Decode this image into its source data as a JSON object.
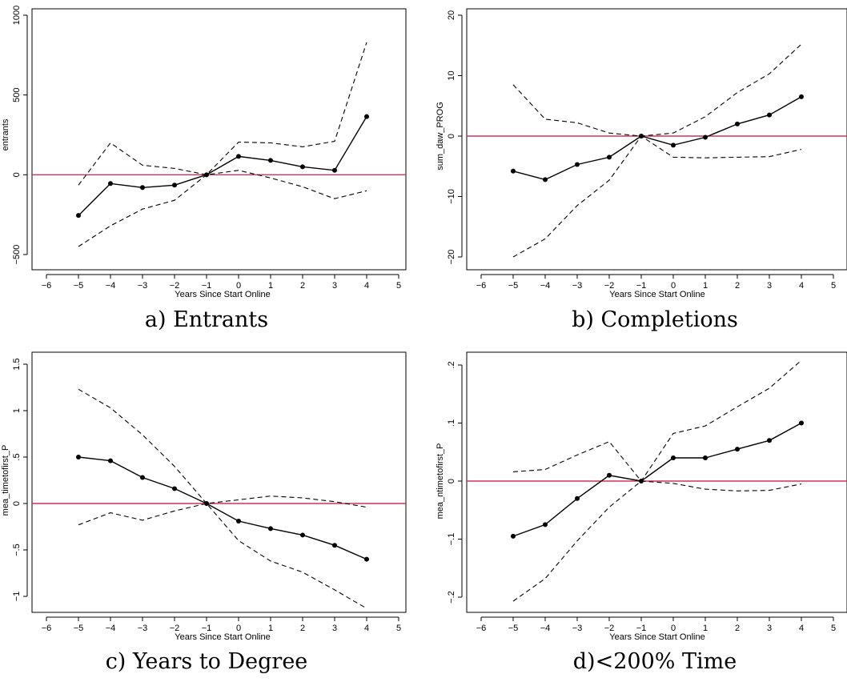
{
  "chart_data": [
    {
      "type": "line",
      "caption": "a) Entrants",
      "xlabel": "Years Since Start Online",
      "ylabel": "entrants",
      "xlim": [
        -6,
        5
      ],
      "ylim": [
        -500,
        1000
      ],
      "xticks": [
        -6,
        -5,
        -4,
        -3,
        -2,
        -1,
        0,
        1,
        2,
        3,
        4,
        5
      ],
      "xtick_labels": [
        "−6",
        "−5",
        "−4",
        "−3",
        "−2",
        "−1",
        "0",
        "1",
        "2",
        "3",
        "4",
        "5"
      ],
      "yticks": [
        -500,
        0,
        500,
        1000
      ],
      "ytick_labels": [
        "−500",
        "0",
        "500",
        "1000"
      ],
      "x": [
        -5,
        -4,
        -3,
        -2,
        -1,
        0,
        1,
        2,
        3,
        4
      ],
      "series": [
        {
          "role": "estimate",
          "values": [
            -255,
            -55,
            -80,
            -65,
            0,
            115,
            90,
            50,
            28,
            365
          ]
        },
        {
          "role": "upper",
          "values": [
            -65,
            200,
            60,
            40,
            0,
            205,
            200,
            175,
            210,
            830
          ]
        },
        {
          "role": "lower",
          "values": [
            -450,
            -320,
            -215,
            -160,
            0,
            28,
            -20,
            -75,
            -150,
            -100
          ]
        }
      ],
      "reference_line": {
        "y": 0,
        "color": "#c8375a"
      },
      "grid": false
    },
    {
      "type": "line",
      "caption": "b) Completions",
      "xlabel": "Years Since Start Online",
      "ylabel": "sum_daw_PROG",
      "xlim": [
        -6,
        5
      ],
      "ylim": [
        -20,
        20
      ],
      "xticks": [
        -6,
        -5,
        -4,
        -3,
        -2,
        -1,
        0,
        1,
        2,
        3,
        4,
        5
      ],
      "xtick_labels": [
        "−6",
        "−5",
        "−4",
        "−3",
        "−2",
        "−1",
        "0",
        "1",
        "2",
        "3",
        "4",
        "5"
      ],
      "yticks": [
        -20,
        -10,
        0,
        10,
        20
      ],
      "ytick_labels": [
        "−20",
        "−10",
        "0",
        "10",
        "20"
      ],
      "x": [
        -5,
        -4,
        -3,
        -2,
        -1,
        0,
        1,
        2,
        3,
        4
      ],
      "series": [
        {
          "role": "estimate",
          "values": [
            -5.8,
            -7.2,
            -4.7,
            -3.5,
            0,
            -1.5,
            -0.2,
            2.0,
            3.5,
            6.5
          ]
        },
        {
          "role": "upper",
          "values": [
            8.5,
            2.8,
            2.2,
            0.5,
            0,
            0.5,
            3.2,
            7.2,
            10.3,
            15.2
          ]
        },
        {
          "role": "lower",
          "values": [
            -20.0,
            -17.0,
            -11.5,
            -7.3,
            0,
            -3.5,
            -3.6,
            -3.5,
            -3.4,
            -2.2
          ]
        }
      ],
      "reference_line": {
        "y": 0,
        "color": "#c8375a"
      },
      "grid": false
    },
    {
      "type": "line",
      "caption": "c) Years to Degree",
      "xlabel": "Years Since Start Online",
      "ylabel": "mea_timetofirst_P",
      "xlim": [
        -6,
        5
      ],
      "ylim": [
        -1.2,
        1.5
      ],
      "xticks": [
        -6,
        -5,
        -4,
        -3,
        -2,
        -1,
        0,
        1,
        2,
        3,
        4,
        5
      ],
      "xtick_labels": [
        "−6",
        "−5",
        "−4",
        "−3",
        "−2",
        "−1",
        "0",
        "1",
        "2",
        "3",
        "4",
        "5"
      ],
      "yticks": [
        -1,
        -0.5,
        0,
        0.5,
        1,
        1.5
      ],
      "ytick_labels": [
        "−1",
        "−.5",
        "0",
        ".5",
        "1",
        "1.5"
      ],
      "x": [
        -5,
        -4,
        -3,
        -2,
        -1,
        0,
        1,
        2,
        3,
        4
      ],
      "series": [
        {
          "role": "estimate",
          "values": [
            0.5,
            0.46,
            0.28,
            0.16,
            0,
            -0.19,
            -0.27,
            -0.34,
            -0.45,
            -0.6
          ]
        },
        {
          "role": "upper",
          "values": [
            1.23,
            1.03,
            0.74,
            0.4,
            0,
            0.04,
            0.08,
            0.06,
            0.02,
            -0.04
          ]
        },
        {
          "role": "lower",
          "values": [
            -0.23,
            -0.1,
            -0.18,
            -0.08,
            0,
            -0.4,
            -0.62,
            -0.74,
            -0.93,
            -1.13
          ]
        }
      ],
      "reference_line": {
        "y": 0,
        "color": "#c8375a"
      },
      "grid": false
    },
    {
      "type": "line",
      "caption": "d)<200% Time",
      "xlabel": "Years Since Start Online",
      "ylabel": "mea_ntimetofirst_P",
      "xlim": [
        -6,
        5
      ],
      "ylim": [
        -0.21,
        0.21
      ],
      "xticks": [
        -6,
        -5,
        -4,
        -3,
        -2,
        -1,
        0,
        1,
        2,
        3,
        4,
        5
      ],
      "xtick_labels": [
        "−6",
        "−5",
        "−4",
        "−3",
        "−2",
        "−1",
        "0",
        "1",
        "2",
        "3",
        "4",
        "5"
      ],
      "yticks": [
        -0.2,
        -0.1,
        0,
        0.1,
        0.2
      ],
      "ytick_labels": [
        "−.2",
        "−.1",
        "0",
        ".1",
        ".2"
      ],
      "x": [
        -5,
        -4,
        -3,
        -2,
        -1,
        0,
        1,
        2,
        3,
        4
      ],
      "series": [
        {
          "role": "estimate",
          "values": [
            -0.095,
            -0.075,
            -0.03,
            0.01,
            0,
            0.04,
            0.04,
            0.055,
            0.07,
            0.1
          ]
        },
        {
          "role": "upper",
          "values": [
            0.016,
            0.02,
            0.045,
            0.068,
            0,
            0.082,
            0.095,
            0.128,
            0.16,
            0.208
          ]
        },
        {
          "role": "lower",
          "values": [
            -0.207,
            -0.168,
            -0.103,
            -0.045,
            0,
            -0.004,
            -0.014,
            -0.017,
            -0.016,
            -0.005
          ]
        }
      ],
      "reference_line": {
        "y": 0,
        "color": "#c8375a"
      },
      "grid": false
    }
  ]
}
